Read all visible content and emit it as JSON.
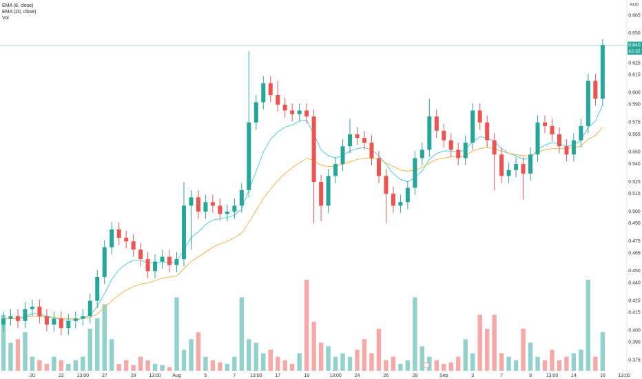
{
  "chart_data": {
    "type": "candlestick",
    "currency": "AUD",
    "last_price": {
      "value": 0.64,
      "label": "0.640"
    },
    "countdown": "42:32",
    "up_color": "#26a69a",
    "down_color": "#ef5350",
    "ylim": [
      0.365,
      0.678
    ],
    "yticks": [
      0.665,
      {
        "value": 0.65,
        "label": "0.650"
      },
      0.625,
      0.615,
      {
        "value": 0.6,
        "label": "0.600"
      },
      {
        "value": 0.59,
        "label": "0.590"
      },
      0.575,
      0.565,
      {
        "value": 0.55,
        "label": "0.550"
      },
      {
        "value": 0.54,
        "label": "0.540"
      },
      0.525,
      0.515,
      {
        "value": 0.5,
        "label": "0.500"
      },
      {
        "value": 0.49,
        "label": "0.490"
      },
      0.475,
      0.465,
      {
        "value": 0.45,
        "label": "0.450"
      },
      {
        "value": 0.44,
        "label": "0.440"
      },
      0.425,
      0.415,
      {
        "value": 0.4,
        "label": "0.400"
      },
      {
        "value": 0.39,
        "label": "0.390"
      },
      0.375
    ],
    "categories": [
      null,
      null,
      null,
      null,
      "20",
      null,
      null,
      null,
      "22",
      null,
      null,
      "13:00",
      null,
      null,
      "27",
      null,
      null,
      null,
      "29",
      null,
      null,
      "13:00",
      null,
      null,
      "Aug",
      null,
      null,
      null,
      "5",
      null,
      null,
      null,
      "7",
      null,
      null,
      "13:00",
      null,
      null,
      "17",
      null,
      null,
      null,
      "19",
      null,
      null,
      null,
      "13:00",
      null,
      null,
      "24",
      null,
      null,
      null,
      "26",
      null,
      null,
      null,
      "28",
      null,
      null,
      null,
      "Sep",
      null,
      null,
      null,
      "3",
      null,
      null,
      null,
      "7",
      null,
      null,
      null,
      "9",
      null,
      null,
      "13:00",
      null,
      null,
      "14",
      null,
      null,
      null,
      "16",
      null,
      null,
      "13:00"
    ],
    "open": [
      0.405,
      0.41,
      0.412,
      0.408,
      0.418,
      0.42,
      0.412,
      0.405,
      0.41,
      0.402,
      0.408,
      0.41,
      0.412,
      0.425,
      0.445,
      0.47,
      0.485,
      0.478,
      0.475,
      0.468,
      0.46,
      0.45,
      0.458,
      0.462,
      0.455,
      0.46,
      0.505,
      0.512,
      0.5,
      0.508,
      0.505,
      0.498,
      0.5,
      0.505,
      0.518,
      0.575,
      0.592,
      0.608,
      0.598,
      0.59,
      0.585,
      0.582,
      0.585,
      0.58,
      0.525,
      0.505,
      0.53,
      0.54,
      0.555,
      0.565,
      0.562,
      0.558,
      0.545,
      0.53,
      0.515,
      0.505,
      0.508,
      0.52,
      0.545,
      0.552,
      0.58,
      0.568,
      0.56,
      0.552,
      0.545,
      0.558,
      0.585,
      0.575,
      0.56,
      0.548,
      0.53,
      0.535,
      0.54,
      0.532,
      0.548,
      0.575,
      0.572,
      0.565,
      0.555,
      0.548,
      0.56,
      0.572,
      0.61,
      0.595,
      null,
      null,
      null
    ],
    "high": [
      0.416,
      0.418,
      0.418,
      0.424,
      0.426,
      0.426,
      0.418,
      0.416,
      0.416,
      0.414,
      0.416,
      0.418,
      0.431,
      0.451,
      0.476,
      0.491,
      0.491,
      0.484,
      0.481,
      0.474,
      0.466,
      0.464,
      0.468,
      0.468,
      0.466,
      0.525,
      0.518,
      0.518,
      0.514,
      0.514,
      0.511,
      0.506,
      0.511,
      0.524,
      0.635,
      0.598,
      0.614,
      0.614,
      0.61,
      0.596,
      0.591,
      0.591,
      0.591,
      0.586,
      0.531,
      0.536,
      0.546,
      0.561,
      0.578,
      0.571,
      0.568,
      0.564,
      0.551,
      0.536,
      0.521,
      0.514,
      0.526,
      0.551,
      0.558,
      0.595,
      0.586,
      0.574,
      0.566,
      0.558,
      0.564,
      0.591,
      0.591,
      0.581,
      0.566,
      0.554,
      0.541,
      0.546,
      0.546,
      0.554,
      0.581,
      0.581,
      0.578,
      0.571,
      0.561,
      0.566,
      0.578,
      0.616,
      0.616,
      0.645,
      null,
      null,
      null
    ],
    "low": [
      0.399,
      0.404,
      0.402,
      0.402,
      0.412,
      0.406,
      0.399,
      0.399,
      0.396,
      0.396,
      0.402,
      0.404,
      0.406,
      0.419,
      0.439,
      0.464,
      0.472,
      0.469,
      0.462,
      0.454,
      0.444,
      0.444,
      0.452,
      0.449,
      0.449,
      0.454,
      0.468,
      0.494,
      0.494,
      0.499,
      0.492,
      0.492,
      0.494,
      0.499,
      0.512,
      0.569,
      0.586,
      0.592,
      0.584,
      0.579,
      0.576,
      0.576,
      0.574,
      0.49,
      0.492,
      0.499,
      0.524,
      0.534,
      0.549,
      0.556,
      0.552,
      0.539,
      0.524,
      0.49,
      0.499,
      0.499,
      0.502,
      0.514,
      0.539,
      0.546,
      0.562,
      0.554,
      0.546,
      0.539,
      0.539,
      0.552,
      0.569,
      0.554,
      0.518,
      0.524,
      0.524,
      0.529,
      0.51,
      0.526,
      0.542,
      0.566,
      0.559,
      0.549,
      0.542,
      0.542,
      0.554,
      0.566,
      0.589,
      0.589,
      null,
      null,
      null
    ],
    "close": [
      0.41,
      0.412,
      0.408,
      0.418,
      0.42,
      0.412,
      0.405,
      0.41,
      0.402,
      0.408,
      0.41,
      0.412,
      0.425,
      0.445,
      0.47,
      0.485,
      0.478,
      0.475,
      0.468,
      0.46,
      0.45,
      0.458,
      0.462,
      0.455,
      0.46,
      0.505,
      0.512,
      0.5,
      0.508,
      0.505,
      0.498,
      0.5,
      0.505,
      0.518,
      0.575,
      0.592,
      0.608,
      0.598,
      0.59,
      0.585,
      0.582,
      0.585,
      0.58,
      0.525,
      0.505,
      0.53,
      0.54,
      0.555,
      0.565,
      0.562,
      0.558,
      0.545,
      0.53,
      0.515,
      0.505,
      0.508,
      0.52,
      0.545,
      0.552,
      0.58,
      0.568,
      0.56,
      0.552,
      0.545,
      0.558,
      0.585,
      0.575,
      0.56,
      0.548,
      0.53,
      0.535,
      0.54,
      0.532,
      0.548,
      0.575,
      0.572,
      0.565,
      0.555,
      0.548,
      0.56,
      0.572,
      0.61,
      0.595,
      0.64,
      null,
      null,
      null
    ],
    "volume": {
      "name": "Vol",
      "values": [
        80,
        40,
        45,
        55,
        20,
        15,
        10,
        20,
        15,
        10,
        15,
        20,
        60,
        75,
        95,
        45,
        10,
        15,
        8,
        20,
        15,
        10,
        8,
        5,
        105,
        30,
        45,
        55,
        20,
        15,
        12,
        10,
        20,
        105,
        45,
        40,
        25,
        30,
        20,
        15,
        10,
        25,
        130,
        70,
        40,
        35,
        20,
        25,
        20,
        30,
        45,
        25,
        60,
        15,
        20,
        10,
        15,
        105,
        35,
        20,
        15,
        10,
        12,
        20,
        45,
        25,
        80,
        60,
        80,
        25,
        20,
        15,
        60,
        40,
        20,
        15,
        30,
        15,
        20,
        25,
        30,
        130,
        20,
        55,
        null,
        null,
        null
      ]
    },
    "series": [
      {
        "name": "EMA (8, close)",
        "color": "#4dd0e1",
        "values": [
          0.41,
          0.41,
          0.41,
          0.412,
          0.414,
          0.414,
          0.412,
          0.411,
          0.409,
          0.409,
          0.409,
          0.41,
          0.413,
          0.42,
          0.431,
          0.443,
          0.451,
          0.456,
          0.459,
          0.459,
          0.457,
          0.457,
          0.458,
          0.457,
          0.458,
          0.468,
          0.478,
          0.483,
          0.489,
          0.493,
          0.494,
          0.495,
          0.497,
          0.502,
          0.518,
          0.534,
          0.55,
          0.561,
          0.567,
          0.571,
          0.573,
          0.576,
          0.577,
          0.565,
          0.552,
          0.547,
          0.545,
          0.547,
          0.551,
          0.553,
          0.554,
          0.552,
          0.547,
          0.54,
          0.532,
          0.527,
          0.525,
          0.529,
          0.534,
          0.544,
          0.549,
          0.551,
          0.551,
          0.55,
          0.552,
          0.559,
          0.563,
          0.562,
          0.559,
          0.553,
          0.549,
          0.547,
          0.544,
          0.545,
          0.552,
          0.556,
          0.558,
          0.557,
          0.555,
          0.556,
          0.56,
          0.571,
          0.576,
          0.59,
          null,
          null,
          null
        ]
      },
      {
        "name": "EMA (20, close)",
        "color": "#f5b547",
        "values": [
          0.41,
          0.41,
          0.41,
          0.411,
          0.412,
          0.412,
          0.411,
          0.411,
          0.41,
          0.41,
          0.41,
          0.41,
          0.411,
          0.414,
          0.419,
          0.425,
          0.43,
          0.434,
          0.437,
          0.439,
          0.44,
          0.442,
          0.444,
          0.445,
          0.446,
          0.452,
          0.458,
          0.462,
          0.466,
          0.47,
          0.473,
          0.475,
          0.478,
          0.482,
          0.491,
          0.501,
          0.511,
          0.519,
          0.526,
          0.532,
          0.537,
          0.541,
          0.545,
          0.543,
          0.539,
          0.538,
          0.538,
          0.54,
          0.542,
          0.544,
          0.545,
          0.545,
          0.544,
          0.541,
          0.538,
          0.535,
          0.534,
          0.535,
          0.537,
          0.541,
          0.544,
          0.545,
          0.546,
          0.546,
          0.547,
          0.551,
          0.553,
          0.554,
          0.553,
          0.551,
          0.549,
          0.548,
          0.547,
          0.547,
          0.55,
          0.552,
          0.553,
          0.553,
          0.553,
          0.554,
          0.555,
          0.561,
          0.564,
          0.571,
          null,
          null,
          null
        ]
      }
    ]
  }
}
